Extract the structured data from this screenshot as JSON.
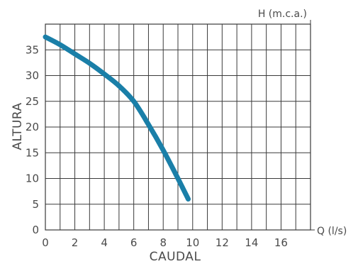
{
  "chart_data": {
    "type": "line",
    "x_unit_label": "Q (l/s)",
    "y_unit_label": "H (m.c.a.)",
    "xlabel": "CAUDAL",
    "ylabel": "ALTURA",
    "xlim": [
      0,
      18
    ],
    "ylim": [
      0,
      40
    ],
    "x_ticks": [
      0,
      2,
      4,
      6,
      8,
      10,
      12,
      14,
      16
    ],
    "y_ticks": [
      0,
      5,
      10,
      15,
      20,
      25,
      30,
      35
    ],
    "grid": true,
    "line_color": "#1a7fa8",
    "series": [
      {
        "x": [
          0,
          1,
          2,
          3,
          4,
          5,
          6,
          7,
          8,
          9,
          9.7
        ],
        "y": [
          37.5,
          36,
          34.2,
          32.4,
          30.3,
          28,
          25,
          20.5,
          15.5,
          10,
          6
        ]
      }
    ]
  }
}
